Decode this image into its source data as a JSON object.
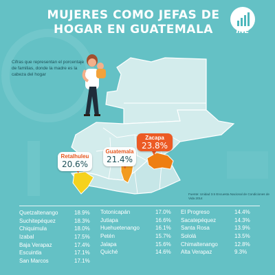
{
  "title_lines": [
    "MUJERES COMO JEFAS DE",
    "HOGAR EN GUATEMALA"
  ],
  "logo_text": "INE",
  "description": "Cifras que representan el porcentaje de familias, donde la madre es la cabeza del hogar",
  "source": "Fuente: Unidad 3.5 Encuesta Nacional de Condiciones de Vida 2014",
  "colors": {
    "background": "#64c1c5",
    "accent": "#ec5a24",
    "map": "#d3ecec",
    "highlight_yellow": "#f6d21d",
    "highlight_orange": "#f29b20"
  },
  "callouts": [
    {
      "name": "Retalhuleu",
      "value": "20.6%"
    },
    {
      "name": "Guatemala",
      "value": "21.4%"
    },
    {
      "name": "Zacapa",
      "value": "23.8%"
    }
  ],
  "table_col1": [
    {
      "name": "Quetzaltenango",
      "value": "18.9%"
    },
    {
      "name": "Suchitepéquez",
      "value": "18.3%"
    },
    {
      "name": "Chiquimula",
      "value": "18.0%"
    },
    {
      "name": "Izabal",
      "value": "17.5%"
    },
    {
      "name": "Baja Verapaz",
      "value": "17.4%"
    },
    {
      "name": "Escuintla",
      "value": "17.1%"
    },
    {
      "name": "San Marcos",
      "value": "17.1%"
    }
  ],
  "table_col2": [
    {
      "name": "Totonicapán",
      "value": "17.0%"
    },
    {
      "name": "Jutiapa",
      "value": "16.6%"
    },
    {
      "name": "Huehuetenango",
      "value": "16.1%"
    },
    {
      "name": "Petén",
      "value": "15.7%"
    },
    {
      "name": "Jalapa",
      "value": "15.6%"
    },
    {
      "name": "Quiché",
      "value": "14.6%"
    }
  ],
  "table_col3": [
    {
      "name": "El Progreso",
      "value": "14.4%"
    },
    {
      "name": "Sacatepéquez",
      "value": "14.3%"
    },
    {
      "name": "Santa Rosa",
      "value": "13.9%"
    },
    {
      "name": "Sololá",
      "value": "13.5%"
    },
    {
      "name": "Chimaltenango",
      "value": "12.8%"
    },
    {
      "name": "Alta Verapaz",
      "value": "9.3%"
    }
  ]
}
